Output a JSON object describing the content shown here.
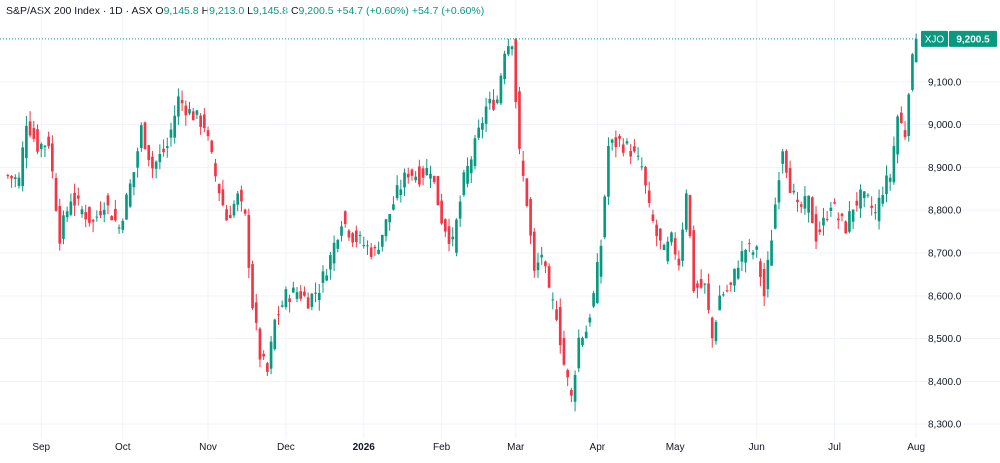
{
  "header": {
    "title": "S&P/ASX 200 Index · 1D · ASX",
    "open_label": "O",
    "open": "9,145.8",
    "high_label": "H",
    "high": "9,213.0",
    "low_label": "L",
    "low": "9,145.8",
    "close_label": "C",
    "close": "9,200.5",
    "change": "+54.7 (+0.60%)",
    "change2": "+54.7 (+0.60%)"
  },
  "colors": {
    "up": "#089981",
    "down": "#f23645",
    "grid": "#f0f3fa",
    "last_line": "#089981"
  },
  "chart_data": {
    "type": "candlestick",
    "symbol_tag": "XJO",
    "last_price_label": "9,200.5",
    "last_price": 9200.5,
    "ylim": [
      8270,
      9240
    ],
    "y_ticks": [
      8300,
      8400,
      8500,
      8600,
      8700,
      8800,
      8900,
      9000,
      9100
    ],
    "y_tick_labels": [
      "8,300.0",
      "8,400.0",
      "8,500.0",
      "8,600.0",
      "8,700.0",
      "8,800.0",
      "8,900.0",
      "9,000.0",
      "9,100.0"
    ],
    "x_ticks": [
      {
        "label": "Sep",
        "index": 9
      },
      {
        "label": "Oct",
        "index": 31
      },
      {
        "label": "Nov",
        "index": 54
      },
      {
        "label": "Dec",
        "index": 75
      },
      {
        "label": "2026",
        "index": 96,
        "bold": true
      },
      {
        "label": "Feb",
        "index": 117
      },
      {
        "label": "Mar",
        "index": 137
      },
      {
        "label": "Apr",
        "index": 159
      },
      {
        "label": "May",
        "index": 180
      },
      {
        "label": "Jun",
        "index": 202
      },
      {
        "label": "Jul",
        "index": 223
      },
      {
        "label": "Aug",
        "index": 245
      }
    ],
    "close_points": [
      [
        0,
        8880
      ],
      [
        3,
        8870
      ],
      [
        5,
        9010
      ],
      [
        8,
        8950
      ],
      [
        11,
        8960
      ],
      [
        14,
        8740
      ],
      [
        17,
        8830
      ],
      [
        20,
        8800
      ],
      [
        23,
        8770
      ],
      [
        26,
        8820
      ],
      [
        30,
        8760
      ],
      [
        34,
        8890
      ],
      [
        36,
        8990
      ],
      [
        39,
        8900
      ],
      [
        43,
        8950
      ],
      [
        46,
        9060
      ],
      [
        49,
        9030
      ],
      [
        53,
        9000
      ],
      [
        56,
        8880
      ],
      [
        59,
        8780
      ],
      [
        62,
        8830
      ],
      [
        64,
        8780
      ],
      [
        66,
        8580
      ],
      [
        68,
        8460
      ],
      [
        70,
        8420
      ],
      [
        72,
        8540
      ],
      [
        75,
        8600
      ],
      [
        78,
        8610
      ],
      [
        81,
        8590
      ],
      [
        84,
        8620
      ],
      [
        87,
        8690
      ],
      [
        90,
        8780
      ],
      [
        93,
        8740
      ],
      [
        96,
        8720
      ],
      [
        99,
        8700
      ],
      [
        102,
        8770
      ],
      [
        105,
        8840
      ],
      [
        108,
        8890
      ],
      [
        111,
        8880
      ],
      [
        114,
        8900
      ],
      [
        117,
        8780
      ],
      [
        120,
        8720
      ],
      [
        123,
        8870
      ],
      [
        126,
        8950
      ],
      [
        129,
        9040
      ],
      [
        132,
        9060
      ],
      [
        134,
        9180
      ],
      [
        136,
        9200
      ],
      [
        137,
        9060
      ],
      [
        138,
        8930
      ],
      [
        140,
        8820
      ],
      [
        142,
        8650
      ],
      [
        144,
        8700
      ],
      [
        146,
        8600
      ],
      [
        148,
        8560
      ],
      [
        150,
        8440
      ],
      [
        152,
        8360
      ],
      [
        154,
        8500
      ],
      [
        156,
        8520
      ],
      [
        158,
        8600
      ],
      [
        160,
        8720
      ],
      [
        162,
        8950
      ],
      [
        165,
        8960
      ],
      [
        168,
        8940
      ],
      [
        171,
        8900
      ],
      [
        173,
        8800
      ],
      [
        175,
        8740
      ],
      [
        177,
        8700
      ],
      [
        179,
        8730
      ],
      [
        181,
        8680
      ],
      [
        183,
        8850
      ],
      [
        185,
        8620
      ],
      [
        188,
        8620
      ],
      [
        190,
        8500
      ],
      [
        192,
        8600
      ],
      [
        195,
        8620
      ],
      [
        197,
        8680
      ],
      [
        199,
        8710
      ],
      [
        202,
        8700
      ],
      [
        204,
        8600
      ],
      [
        206,
        8740
      ],
      [
        208,
        8890
      ],
      [
        209,
        8950
      ],
      [
        211,
        8860
      ],
      [
        213,
        8800
      ],
      [
        216,
        8820
      ],
      [
        218,
        8740
      ],
      [
        220,
        8770
      ],
      [
        222,
        8820
      ],
      [
        224,
        8780
      ],
      [
        226,
        8760
      ],
      [
        228,
        8810
      ],
      [
        230,
        8830
      ],
      [
        232,
        8820
      ],
      [
        234,
        8790
      ],
      [
        236,
        8850
      ],
      [
        238,
        8880
      ],
      [
        240,
        9020
      ],
      [
        242,
        8980
      ],
      [
        243,
        9090
      ],
      [
        244,
        9145.8
      ]
    ],
    "last_candle": {
      "open": 9145.8,
      "high": 9213.0,
      "low": 9145.8,
      "close": 9200.5
    }
  }
}
